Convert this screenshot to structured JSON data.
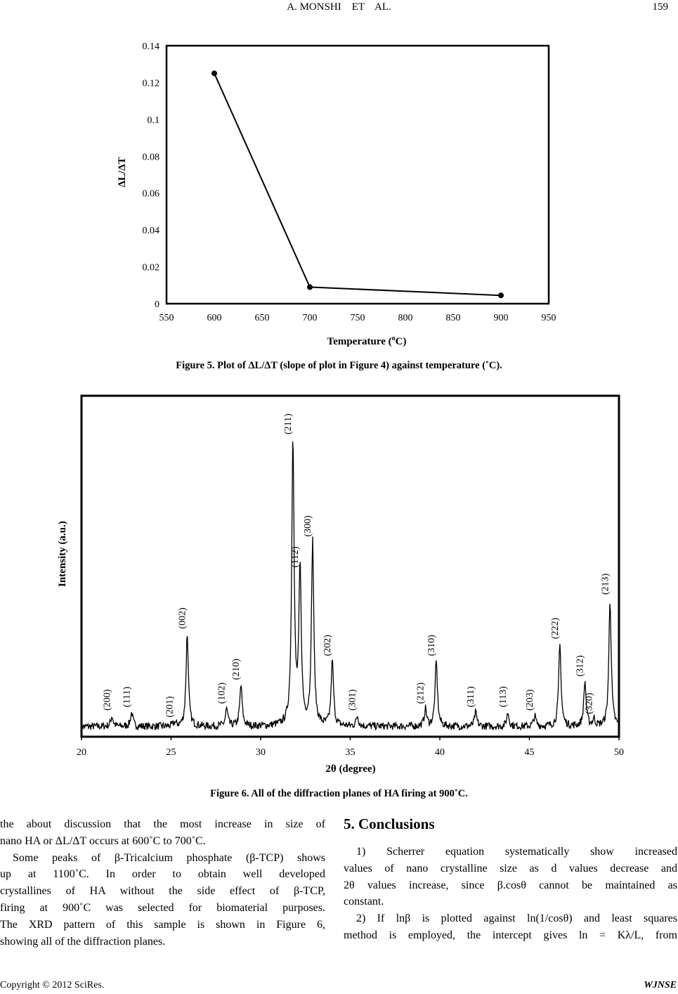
{
  "header": {
    "running_title": "A. MONSHI    ET    AL.",
    "page_number": "159"
  },
  "figure5": {
    "caption": "Figure 5. Plot of ΔL/ΔT (slope of plot in Figure 4) against temperature (˚C).",
    "chart_data": {
      "type": "line",
      "xlabel_prefix": "Temperature (",
      "xlabel_sup": "o",
      "xlabel_suffix": "C)",
      "ylabel": "ΔL/ΔT",
      "xlim": [
        550,
        950
      ],
      "ylim": [
        0,
        0.14
      ],
      "xticks": [
        "550",
        "600",
        "650",
        "700",
        "750",
        "800",
        "850",
        "900",
        "950"
      ],
      "yticks": [
        "0",
        "0.02",
        "0.04",
        "0.06",
        "0.08",
        "0.1",
        "0.12",
        "0.14"
      ],
      "x": [
        600,
        700,
        900
      ],
      "y": [
        0.125,
        0.009,
        0.0045
      ],
      "grid": false,
      "markers": "filled-circle"
    }
  },
  "figure6": {
    "caption": "Figure 6. All of the diffraction planes of HA firing at 900˚C.",
    "chart_data": {
      "type": "line",
      "xlabel": "2θ (degree)",
      "ylabel": "Intensity (a.u.)",
      "xlim": [
        20,
        50
      ],
      "xticks": [
        "20",
        "25",
        "30",
        "35",
        "40",
        "45",
        "50"
      ],
      "baseline": 3,
      "peaks": [
        {
          "label": "(200)",
          "two_theta": 21.7,
          "intensity": 6
        },
        {
          "label": "(111)",
          "two_theta": 22.8,
          "intensity": 7
        },
        {
          "label": "(201)",
          "two_theta": 25.2,
          "intensity": 4
        },
        {
          "label": "(002)",
          "two_theta": 25.9,
          "intensity": 30
        },
        {
          "label": "(102)",
          "two_theta": 28.1,
          "intensity": 8
        },
        {
          "label": "(210)",
          "two_theta": 28.9,
          "intensity": 15
        },
        {
          "label": "(211)",
          "two_theta": 31.8,
          "intensity": 87
        },
        {
          "label": "(112)",
          "two_theta": 32.2,
          "intensity": 48
        },
        {
          "label": "(300)",
          "two_theta": 32.9,
          "intensity": 57
        },
        {
          "label": "(202)",
          "two_theta": 34.0,
          "intensity": 22
        },
        {
          "label": "(301)",
          "two_theta": 35.4,
          "intensity": 6
        },
        {
          "label": "(212)",
          "two_theta": 39.2,
          "intensity": 8
        },
        {
          "label": "(310)",
          "two_theta": 39.8,
          "intensity": 22
        },
        {
          "label": "(311)",
          "two_theta": 42.0,
          "intensity": 7
        },
        {
          "label": "(113)",
          "two_theta": 43.8,
          "intensity": 7
        },
        {
          "label": "(203)",
          "two_theta": 45.3,
          "intensity": 6
        },
        {
          "label": "(222)",
          "two_theta": 46.7,
          "intensity": 27
        },
        {
          "label": "(312)",
          "two_theta": 48.1,
          "intensity": 16
        },
        {
          "label": "(320)",
          "two_theta": 48.6,
          "intensity": 5
        },
        {
          "label": "(213)",
          "two_theta": 49.5,
          "intensity": 40
        }
      ]
    }
  },
  "left_column": {
    "lines": [
      "the about discussion that the most increase in size of",
      "nano HA or ΔL/ΔT occurs at 600˚C to 700˚C.",
      "Some peaks of β-Tricalcium phosphate (β-TCP) shows",
      "up at 1100˚C. In order to obtain well developed",
      "crystallines of HA without the side effect of β-TCP,",
      "firing at 900˚C was selected for biomaterial purposes.",
      "The XRD pattern of this sample is shown in Figure 6,",
      "showing all of the diffraction planes."
    ]
  },
  "right_column": {
    "heading": "5. Conclusions",
    "lines": [
      "1) Scherrer equation systematically show increased",
      "values of nano crystalline size as d values decrease and",
      "2θ values increase, since β.cosθ cannot be maintained as",
      "constant.",
      "2) If lnβ is plotted against ln(1/cosθ) and least squares",
      "method is employed, the intercept gives ln = Kλ/L, from"
    ]
  },
  "footer": {
    "copyright": "Copyright © 2012 SciRes.",
    "journal": "WJNSE"
  }
}
